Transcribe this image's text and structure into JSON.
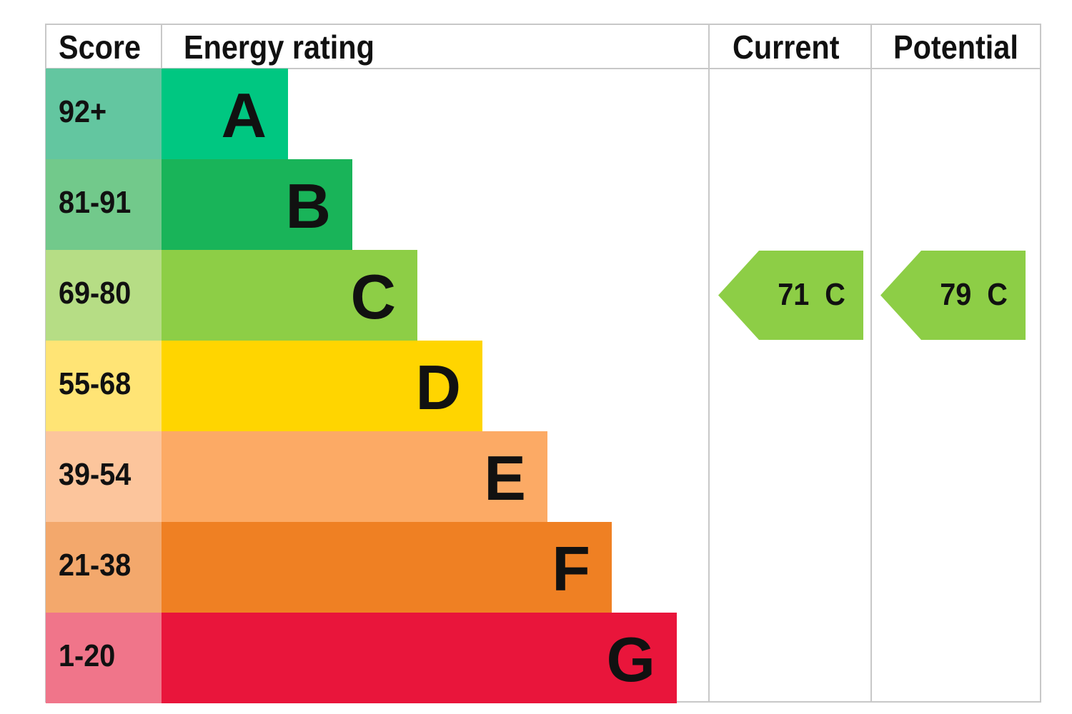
{
  "chart_data": {
    "type": "table",
    "headers": {
      "score": "Score",
      "rating": "Energy rating",
      "current": "Current",
      "potential": "Potential"
    },
    "bands": [
      {
        "letter": "A",
        "range": "92+",
        "bar_color": "#00c781",
        "score_color": "#63c6a0"
      },
      {
        "letter": "B",
        "range": "81-91",
        "bar_color": "#19b459",
        "score_color": "#72c98b"
      },
      {
        "letter": "C",
        "range": "69-80",
        "bar_color": "#8dce46",
        "score_color": "#b6dd85"
      },
      {
        "letter": "D",
        "range": "55-68",
        "bar_color": "#ffd500",
        "score_color": "#ffe475"
      },
      {
        "letter": "E",
        "range": "39-54",
        "bar_color": "#fcaa65",
        "score_color": "#fcc59c"
      },
      {
        "letter": "F",
        "range": "21-38",
        "bar_color": "#ef8023",
        "score_color": "#f3a86c"
      },
      {
        "letter": "G",
        "range": "1-20",
        "bar_color": "#e9153b",
        "score_color": "#f0758a"
      }
    ],
    "current": {
      "score": 71,
      "rating": "C",
      "label": "71  C",
      "color": "#8dce46"
    },
    "potential": {
      "score": 79,
      "rating": "C",
      "label": "79  C",
      "color": "#8dce46"
    }
  }
}
